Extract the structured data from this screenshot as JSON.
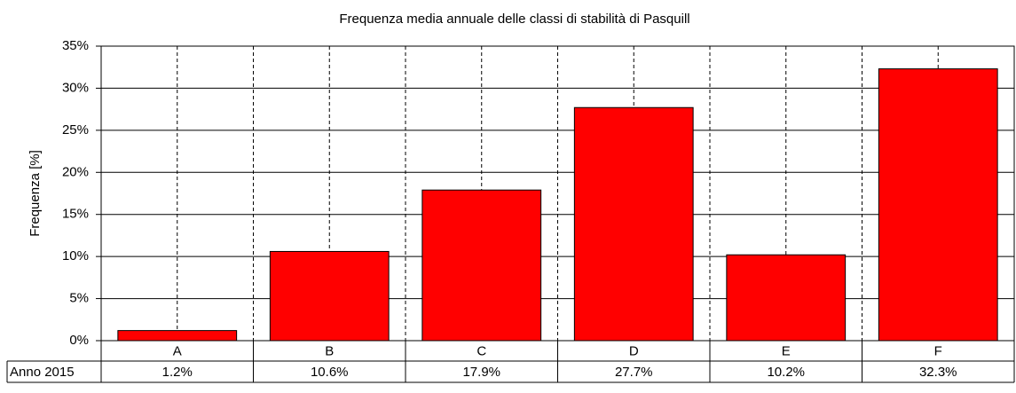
{
  "chart_data": {
    "type": "bar",
    "title": "Frequenza media annuale delle classi di stabilità di Pasquill",
    "y_label": "Frequenza [%]",
    "categories": [
      "A",
      "B",
      "C",
      "D",
      "E",
      "F"
    ],
    "series": [
      {
        "name": "Anno 2015",
        "color": "#ff0000",
        "values": [
          1.2,
          10.6,
          17.9,
          27.7,
          10.2,
          32.3
        ],
        "value_labels": [
          "1.2%",
          "10.6%",
          "17.9%",
          "27.7%",
          "10.2%",
          "32.3%"
        ]
      }
    ],
    "ylim": [
      0,
      35
    ],
    "yticks": [
      {
        "value": 0,
        "label": "0%"
      },
      {
        "value": 5,
        "label": "5%"
      },
      {
        "value": 10,
        "label": "10%"
      },
      {
        "value": 15,
        "label": "15%"
      },
      {
        "value": 20,
        "label": "20%"
      },
      {
        "value": 25,
        "label": "25%"
      },
      {
        "value": 30,
        "label": "30%"
      },
      {
        "value": 35,
        "label": "35%"
      }
    ],
    "grid": true
  }
}
